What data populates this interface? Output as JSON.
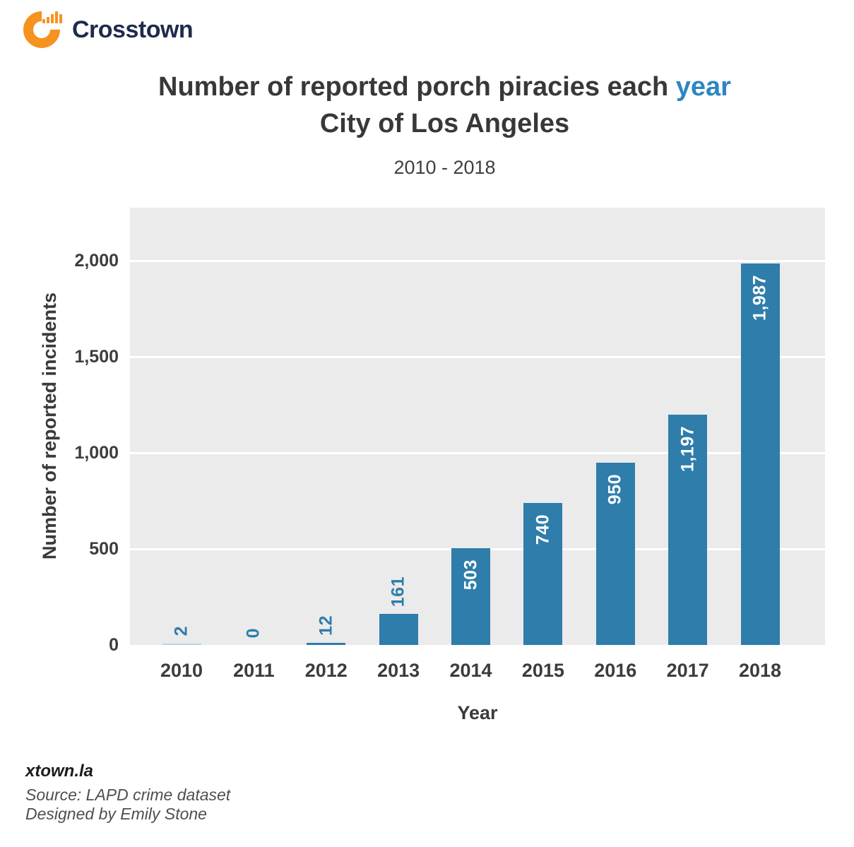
{
  "logo": {
    "brand": "Crosstown",
    "icon": "bar-chart-ring-icon"
  },
  "title": {
    "main": "Number of reported porch piracies each ",
    "accent": "year",
    "line2": "City of Los Angeles",
    "subtitle": "2010 - 2018"
  },
  "chart_data": {
    "type": "bar",
    "title": "Number of reported porch piracies each year",
    "subtitle_line": "City of Los Angeles",
    "period": "2010 - 2018",
    "categories": [
      "2010",
      "2011",
      "2012",
      "2013",
      "2014",
      "2015",
      "2016",
      "2017",
      "2018"
    ],
    "values": [
      2,
      0,
      12,
      161,
      503,
      740,
      950,
      1197,
      1987
    ],
    "bar_labels": [
      "2",
      "0",
      "12",
      "161",
      "503",
      "740",
      "950",
      "1,197",
      "1,987"
    ],
    "xlabel": "Year",
    "ylabel": "Number of reported incidents",
    "ylim": [
      0,
      2276
    ],
    "yticks": [
      0,
      500,
      1000,
      1500,
      2000
    ],
    "ytick_labels": [
      "0",
      "500",
      "1,000",
      "1,500",
      "2,000"
    ],
    "grid": true,
    "legend": "none"
  },
  "footer": {
    "site": "xtown.la",
    "source": "Source: LAPD crime dataset",
    "credit": "Designed by Emily Stone"
  },
  "colors": {
    "bar": "#2e7dab",
    "bar_tiny": "#b5d3e7",
    "label_on_bar": "#ffffff",
    "label_outside": "#2e7dab",
    "title_accent": "#2e86c1",
    "plot_background": "#ebebeb",
    "gridline": "#ffffff",
    "text_dark": "#383838",
    "footer_gray": "#4f4f4f",
    "logo_orange": "#f6921e",
    "brand_navy": "#1e2b4d"
  }
}
